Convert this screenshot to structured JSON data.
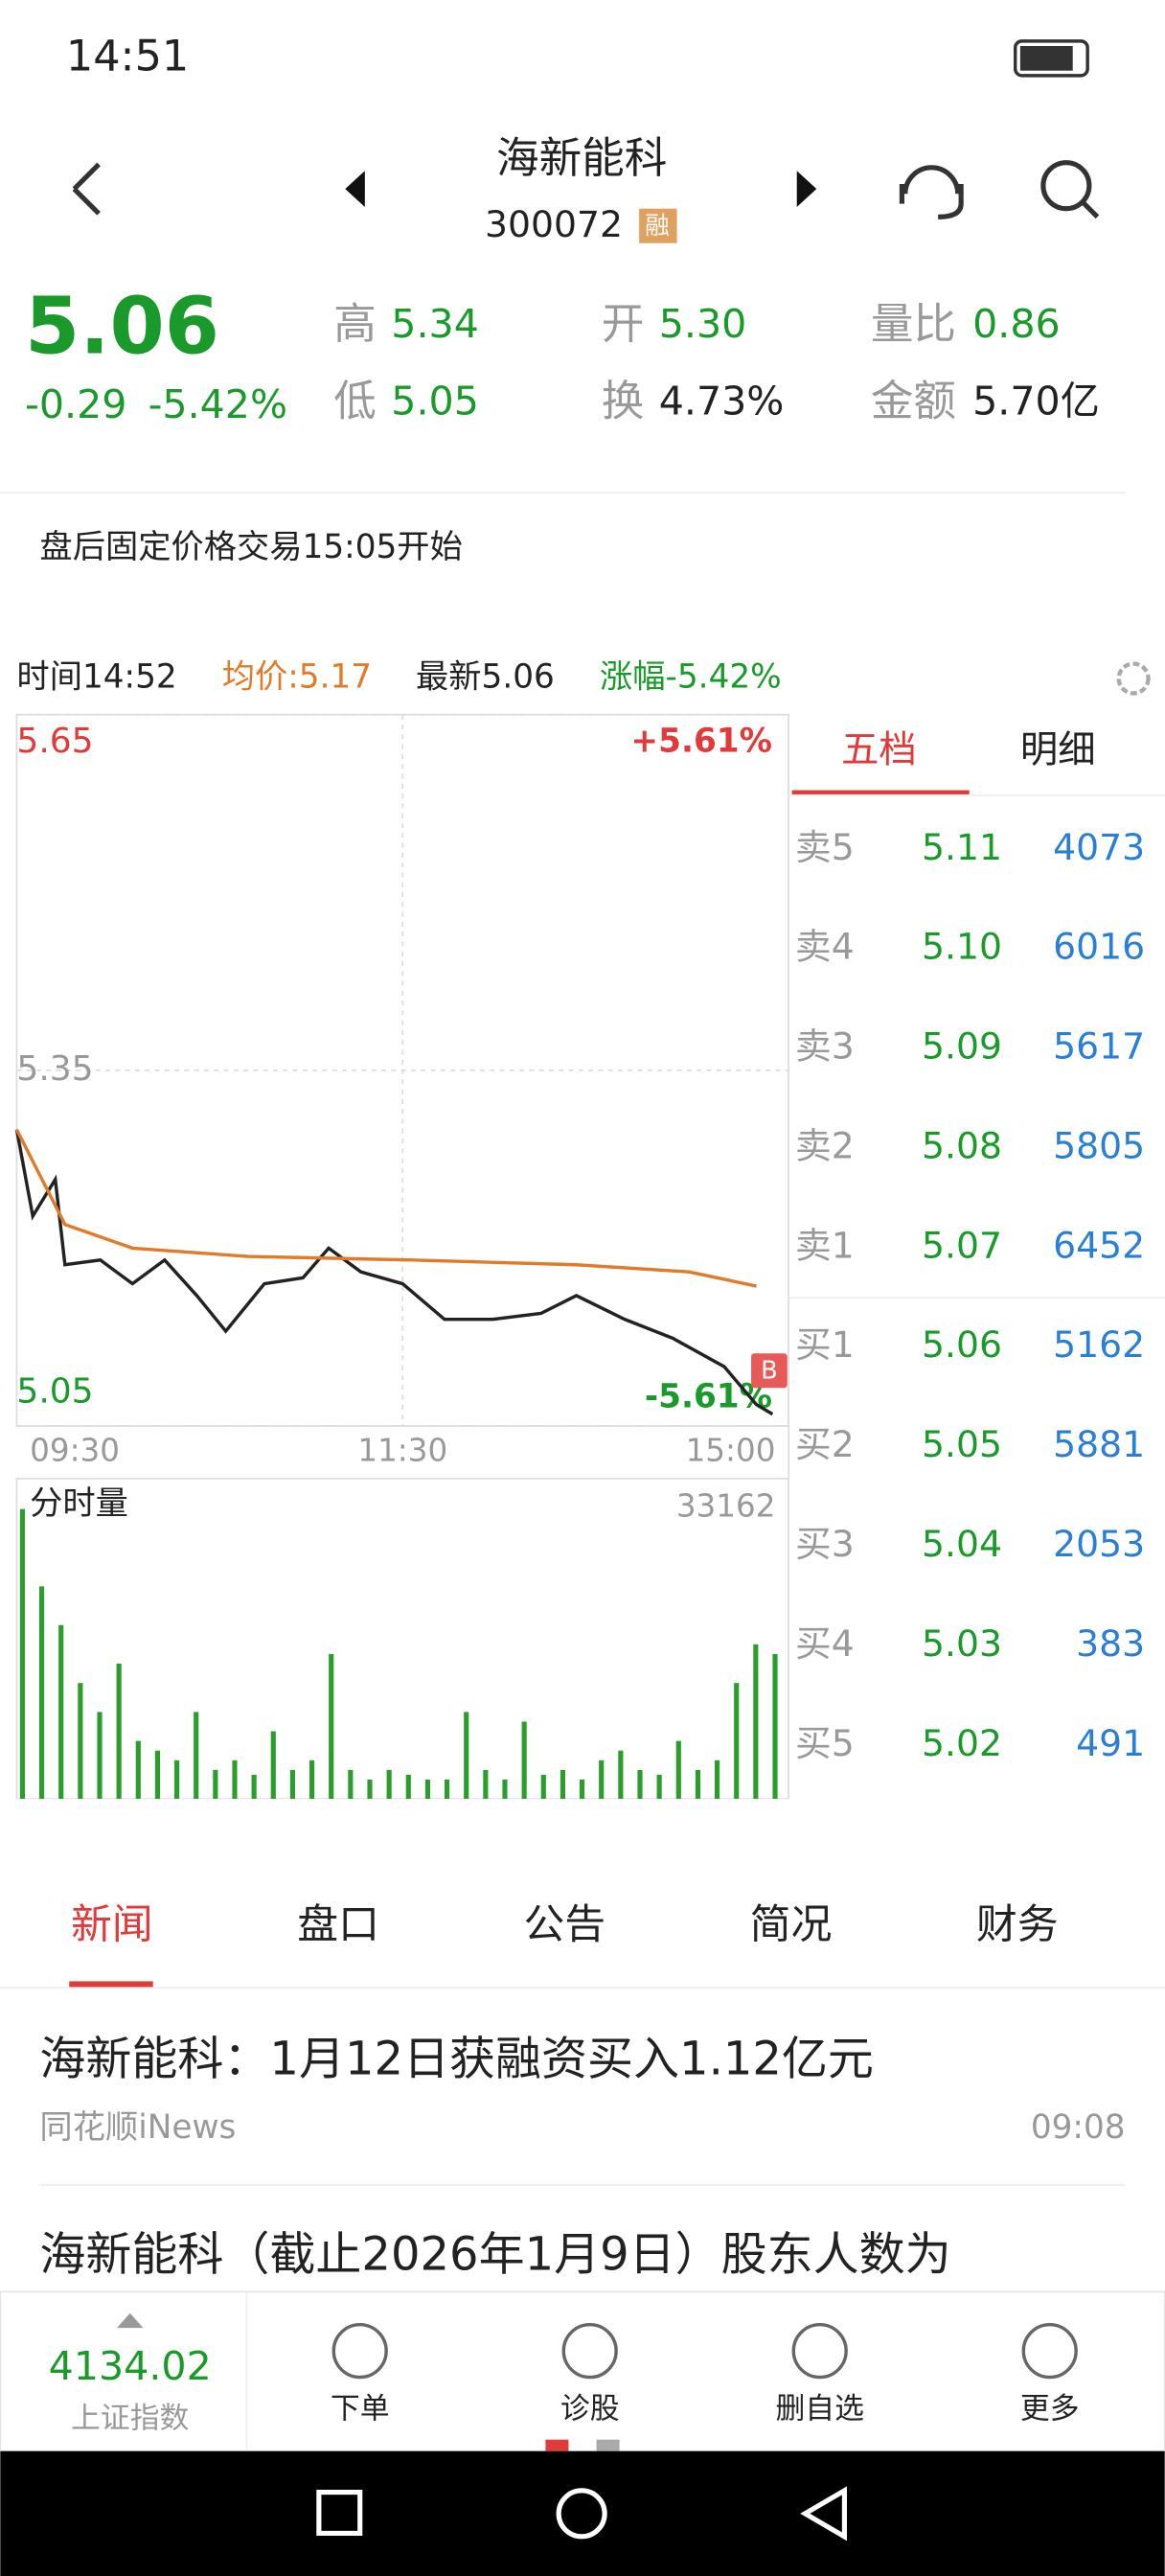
{
  "status_bar": {
    "time": "14:51"
  },
  "header": {
    "name": "海新能科",
    "code": "300072",
    "badge": "融"
  },
  "quote": {
    "price": "5.06",
    "change": "-0.29",
    "change_pct": "-5.42%",
    "stats": [
      {
        "label": "高",
        "value": "5.34"
      },
      {
        "label": "开",
        "value": "5.30"
      },
      {
        "label": "量比",
        "value": "0.86"
      },
      {
        "label": "低",
        "value": "5.05"
      },
      {
        "label": "换",
        "value": "4.73%"
      },
      {
        "label": "金额",
        "value": "5.70亿"
      }
    ]
  },
  "notice": "盘后固定价格交易15:05开始",
  "chart_info": {
    "time": "时间14:52",
    "avg": "均价:5.17",
    "latest": "最新5.06",
    "pct": "涨幅-5.42%"
  },
  "chart_data": [
    {
      "type": "line",
      "ylim": [
        5.05,
        5.65
      ],
      "yticks": [
        5.65,
        5.35,
        5.05
      ],
      "y2lim": [
        -5.61,
        5.61
      ],
      "y2ticks": [
        {
          "value": 5.61,
          "label": "+5.61%"
        },
        {
          "value": -5.61,
          "label": "-5.61%"
        }
      ],
      "xlim": [
        0,
        240
      ],
      "xticks": [
        {
          "value": 0,
          "label": "09:30"
        },
        {
          "value": 120,
          "label": "11:30"
        },
        {
          "value": 240,
          "label": "15:00"
        }
      ],
      "marker": "B",
      "series": [
        {
          "color": "#222222",
          "x": [
            0,
            5,
            12,
            15,
            26,
            36,
            46,
            56,
            65,
            77,
            89,
            97,
            107,
            120,
            133,
            148,
            163,
            174,
            189,
            204,
            220,
            230,
            235
          ],
          "values": [
            5.3,
            5.227,
            5.258,
            5.186,
            5.19,
            5.17,
            5.19,
            5.16,
            5.13,
            5.17,
            5.175,
            5.2,
            5.18,
            5.17,
            5.14,
            5.14,
            5.145,
            5.16,
            5.14,
            5.124,
            5.1,
            5.068,
            5.06
          ]
        },
        {
          "color": "#e07b2a",
          "x": [
            0,
            15,
            36,
            72,
            123,
            174,
            209,
            230
          ],
          "values": [
            5.3,
            5.22,
            5.2,
            5.193,
            5.19,
            5.186,
            5.18,
            5.168
          ]
        }
      ]
    },
    {
      "type": "bar",
      "title": "分时量",
      "ylim": [
        0,
        33162
      ],
      "yticks": [
        33162
      ],
      "xlim": [
        0,
        240
      ],
      "color": "#2a9d2a",
      "x": [
        0,
        6,
        12,
        18,
        24,
        30,
        36,
        42,
        48,
        54,
        60,
        66,
        72,
        78,
        84,
        90,
        96,
        102,
        108,
        114,
        120,
        126,
        132,
        138,
        144,
        150,
        156,
        162,
        168,
        174,
        180,
        186,
        192,
        198,
        204,
        210,
        216,
        222,
        228,
        234
      ],
      "values": [
        30000,
        22000,
        18000,
        12000,
        9000,
        14000,
        6000,
        5000,
        4000,
        9000,
        3000,
        4000,
        2500,
        7000,
        3000,
        4000,
        15000,
        3000,
        2000,
        3000,
        2500,
        2000,
        2000,
        9000,
        3000,
        2000,
        8000,
        2500,
        3000,
        2000,
        4000,
        5000,
        3000,
        2500,
        6000,
        3000,
        4000,
        12000,
        16000,
        15000
      ]
    }
  ],
  "order_book": {
    "tabs": [
      "五档",
      "明细"
    ],
    "rows": [
      {
        "label": "卖5",
        "price": "5.11",
        "volume": "4073"
      },
      {
        "label": "卖4",
        "price": "5.10",
        "volume": "6016"
      },
      {
        "label": "卖3",
        "price": "5.09",
        "volume": "5617"
      },
      {
        "label": "卖2",
        "price": "5.08",
        "volume": "5805"
      },
      {
        "label": "卖1",
        "price": "5.07",
        "volume": "6452"
      },
      {
        "label": "买1",
        "price": "5.06",
        "volume": "5162"
      },
      {
        "label": "买2",
        "price": "5.05",
        "volume": "5881"
      },
      {
        "label": "买3",
        "price": "5.04",
        "volume": "2053"
      },
      {
        "label": "买4",
        "price": "5.03",
        "volume": "383"
      },
      {
        "label": "买5",
        "price": "5.02",
        "volume": "491"
      }
    ]
  },
  "news_tabs": [
    "新闻",
    "盘口",
    "公告",
    "简况",
    "财务"
  ],
  "news": [
    {
      "title": "海新能科：1月12日获融资买入1.12亿元",
      "source": "同花顺iNews",
      "time": "09:08"
    },
    {
      "title": "海新能科（截止2026年1月9日）股东人数为"
    }
  ],
  "bottom_bar": {
    "index_value": "4134.02",
    "index_name": "上证指数",
    "buttons": [
      "下单",
      "诊股",
      "删自选",
      "更多"
    ]
  }
}
